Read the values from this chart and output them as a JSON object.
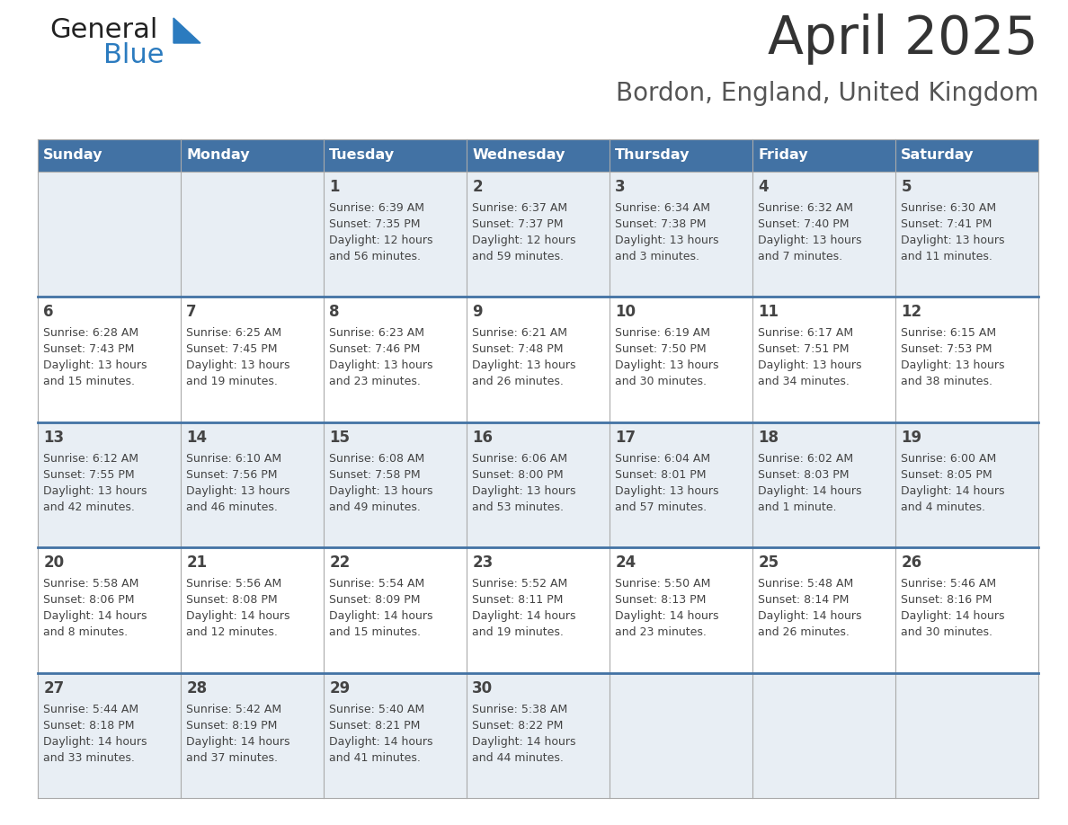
{
  "title": "April 2025",
  "subtitle": "Bordon, England, United Kingdom",
  "days_of_week": [
    "Sunday",
    "Monday",
    "Tuesday",
    "Wednesday",
    "Thursday",
    "Friday",
    "Saturday"
  ],
  "header_bg_color": "#4272a4",
  "header_text_color": "#ffffff",
  "cell_bg_light": "#e8eef4",
  "cell_bg_white": "#ffffff",
  "row_separator_color": "#4272a4",
  "text_color": "#444444",
  "title_color": "#333333",
  "subtitle_color": "#555555",
  "border_color": "#aaaaaa",
  "calendar_data": [
    [
      null,
      null,
      {
        "day": 1,
        "sunrise": "6:39 AM",
        "sunset": "7:35 PM",
        "daylight": "12 hours and 56 minutes"
      },
      {
        "day": 2,
        "sunrise": "6:37 AM",
        "sunset": "7:37 PM",
        "daylight": "12 hours and 59 minutes"
      },
      {
        "day": 3,
        "sunrise": "6:34 AM",
        "sunset": "7:38 PM",
        "daylight": "13 hours and 3 minutes"
      },
      {
        "day": 4,
        "sunrise": "6:32 AM",
        "sunset": "7:40 PM",
        "daylight": "13 hours and 7 minutes"
      },
      {
        "day": 5,
        "sunrise": "6:30 AM",
        "sunset": "7:41 PM",
        "daylight": "13 hours and 11 minutes"
      }
    ],
    [
      {
        "day": 6,
        "sunrise": "6:28 AM",
        "sunset": "7:43 PM",
        "daylight": "13 hours and 15 minutes"
      },
      {
        "day": 7,
        "sunrise": "6:25 AM",
        "sunset": "7:45 PM",
        "daylight": "13 hours and 19 minutes"
      },
      {
        "day": 8,
        "sunrise": "6:23 AM",
        "sunset": "7:46 PM",
        "daylight": "13 hours and 23 minutes"
      },
      {
        "day": 9,
        "sunrise": "6:21 AM",
        "sunset": "7:48 PM",
        "daylight": "13 hours and 26 minutes"
      },
      {
        "day": 10,
        "sunrise": "6:19 AM",
        "sunset": "7:50 PM",
        "daylight": "13 hours and 30 minutes"
      },
      {
        "day": 11,
        "sunrise": "6:17 AM",
        "sunset": "7:51 PM",
        "daylight": "13 hours and 34 minutes"
      },
      {
        "day": 12,
        "sunrise": "6:15 AM",
        "sunset": "7:53 PM",
        "daylight": "13 hours and 38 minutes"
      }
    ],
    [
      {
        "day": 13,
        "sunrise": "6:12 AM",
        "sunset": "7:55 PM",
        "daylight": "13 hours and 42 minutes"
      },
      {
        "day": 14,
        "sunrise": "6:10 AM",
        "sunset": "7:56 PM",
        "daylight": "13 hours and 46 minutes"
      },
      {
        "day": 15,
        "sunrise": "6:08 AM",
        "sunset": "7:58 PM",
        "daylight": "13 hours and 49 minutes"
      },
      {
        "day": 16,
        "sunrise": "6:06 AM",
        "sunset": "8:00 PM",
        "daylight": "13 hours and 53 minutes"
      },
      {
        "day": 17,
        "sunrise": "6:04 AM",
        "sunset": "8:01 PM",
        "daylight": "13 hours and 57 minutes"
      },
      {
        "day": 18,
        "sunrise": "6:02 AM",
        "sunset": "8:03 PM",
        "daylight": "14 hours and 1 minute"
      },
      {
        "day": 19,
        "sunrise": "6:00 AM",
        "sunset": "8:05 PM",
        "daylight": "14 hours and 4 minutes"
      }
    ],
    [
      {
        "day": 20,
        "sunrise": "5:58 AM",
        "sunset": "8:06 PM",
        "daylight": "14 hours and 8 minutes"
      },
      {
        "day": 21,
        "sunrise": "5:56 AM",
        "sunset": "8:08 PM",
        "daylight": "14 hours and 12 minutes"
      },
      {
        "day": 22,
        "sunrise": "5:54 AM",
        "sunset": "8:09 PM",
        "daylight": "14 hours and 15 minutes"
      },
      {
        "day": 23,
        "sunrise": "5:52 AM",
        "sunset": "8:11 PM",
        "daylight": "14 hours and 19 minutes"
      },
      {
        "day": 24,
        "sunrise": "5:50 AM",
        "sunset": "8:13 PM",
        "daylight": "14 hours and 23 minutes"
      },
      {
        "day": 25,
        "sunrise": "5:48 AM",
        "sunset": "8:14 PM",
        "daylight": "14 hours and 26 minutes"
      },
      {
        "day": 26,
        "sunrise": "5:46 AM",
        "sunset": "8:16 PM",
        "daylight": "14 hours and 30 minutes"
      }
    ],
    [
      {
        "day": 27,
        "sunrise": "5:44 AM",
        "sunset": "8:18 PM",
        "daylight": "14 hours and 33 minutes"
      },
      {
        "day": 28,
        "sunrise": "5:42 AM",
        "sunset": "8:19 PM",
        "daylight": "14 hours and 37 minutes"
      },
      {
        "day": 29,
        "sunrise": "5:40 AM",
        "sunset": "8:21 PM",
        "daylight": "14 hours and 41 minutes"
      },
      {
        "day": 30,
        "sunrise": "5:38 AM",
        "sunset": "8:22 PM",
        "daylight": "14 hours and 44 minutes"
      },
      null,
      null,
      null
    ]
  ],
  "logo_text_general": "General",
  "logo_text_blue": "Blue",
  "logo_color_general": "#222222",
  "logo_color_blue": "#2b7bbf",
  "logo_triangle_color": "#2b7bbf"
}
